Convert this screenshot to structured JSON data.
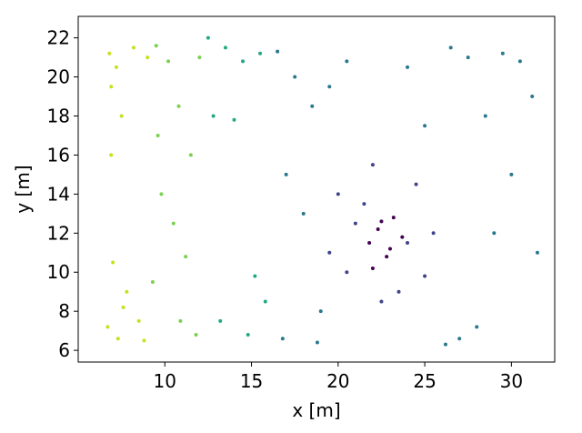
{
  "chart_data": {
    "type": "scatter",
    "x_label": "x [m]",
    "y_label": "y [m]",
    "xlim": [
      5.0,
      32.5
    ],
    "ylim": [
      5.4,
      23.1
    ],
    "xticks": [
      10,
      15,
      20,
      25,
      30
    ],
    "yticks": [
      6,
      8,
      10,
      12,
      14,
      16,
      18,
      20,
      22
    ],
    "series": [
      {
        "color": "#c8e020",
        "x": [
          6.8,
          7.2,
          6.9,
          7.5,
          8.2,
          7.0,
          7.8,
          8.5,
          6.7,
          7.3,
          8.8,
          7.6,
          9.0,
          6.9
        ],
        "y": [
          21.2,
          20.5,
          19.5,
          18.0,
          21.5,
          10.5,
          9.0,
          7.5,
          7.2,
          6.6,
          6.5,
          8.2,
          21.0,
          16.0
        ]
      },
      {
        "color": "#7ad151",
        "x": [
          9.5,
          10.2,
          10.8,
          11.5,
          9.8,
          10.5,
          11.2,
          9.3,
          10.9,
          11.8,
          12.0,
          9.6
        ],
        "y": [
          21.6,
          20.8,
          18.5,
          16.0,
          14.0,
          12.5,
          10.8,
          9.5,
          7.5,
          6.8,
          21.0,
          17.0
        ]
      },
      {
        "color": "#22a884",
        "x": [
          12.5,
          13.5,
          14.5,
          15.5,
          12.8,
          14.0,
          15.2,
          13.2,
          14.8,
          15.8
        ],
        "y": [
          22.0,
          21.5,
          20.8,
          21.2,
          18.0,
          17.8,
          9.8,
          7.5,
          6.8,
          8.5
        ]
      },
      {
        "color": "#2a788e",
        "x": [
          16.5,
          17.5,
          18.5,
          19.5,
          20.5,
          17.0,
          18.0,
          19.0,
          16.8,
          18.8,
          26.5,
          27.5,
          28.5,
          29.5,
          30.5,
          31.2,
          30.0,
          29.0,
          28.0,
          27.0,
          26.2,
          24.0,
          25.0,
          31.5
        ],
        "y": [
          21.3,
          20.0,
          18.5,
          19.5,
          20.8,
          15.0,
          13.0,
          8.0,
          6.6,
          6.4,
          21.5,
          21.0,
          18.0,
          21.2,
          20.8,
          19.0,
          15.0,
          12.0,
          7.2,
          6.6,
          6.3,
          20.5,
          17.5,
          11.0
        ]
      },
      {
        "color": "#414487",
        "x": [
          20.0,
          21.0,
          22.0,
          23.5,
          24.5,
          25.5,
          20.5,
          22.5,
          24.0,
          25.0,
          21.5,
          19.5
        ],
        "y": [
          14.0,
          12.5,
          15.5,
          9.0,
          14.5,
          12.0,
          10.0,
          8.5,
          11.5,
          9.8,
          13.5,
          11.0
        ]
      },
      {
        "color": "#440154",
        "x": [
          21.8,
          22.3,
          22.8,
          23.2,
          23.7,
          22.0,
          23.0,
          22.5
        ],
        "y": [
          11.5,
          12.2,
          10.8,
          12.8,
          11.8,
          10.2,
          11.2,
          12.6
        ]
      }
    ]
  }
}
